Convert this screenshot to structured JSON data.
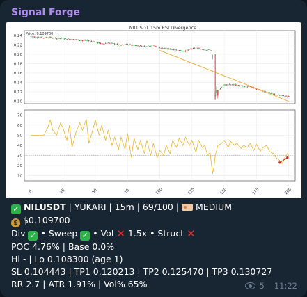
{
  "message": {
    "sender": "Signal Forge",
    "views": "5",
    "time": "11:22",
    "lines": {
      "l1": {
        "symbol": "NILUSDT",
        "rest": " | YUKARI | 15m | 69/100 | ",
        "grade": "MEDIUM"
      },
      "l2": {
        "price": "$0.109700"
      },
      "l3": {
        "div": "Div",
        "sweep": " • Sweep",
        "vol": " • Vol",
        "vol_mult": " 1.5x • Struct"
      },
      "l4": "POC 4.76% | Base 0.0%",
      "l5": "Hi - | Lo 0.108300 (age 1)",
      "l6": "SL 0.104443 | TP1 0.120213 | TP2 0.125470 | TP3 0.130727",
      "l7": "RR 2.7 | ATR 1.91% | Vol% 65%"
    }
  },
  "chart_data": {
    "type": "line",
    "title": "NILUSDT 15m RSI Divergence",
    "price_label": "Price: 0.109700",
    "x_ticks": [
      "0",
      "25",
      "50",
      "75",
      "100",
      "125",
      "150",
      "175",
      "200"
    ],
    "price_y_ticks": [
      "0.24",
      "0.22",
      "0.20",
      "0.18",
      "0.16",
      "0.14",
      "0.12",
      "0.10"
    ],
    "rsi_y_ticks": [
      "70",
      "60",
      "50",
      "40",
      "30",
      "20",
      "10"
    ],
    "price_ylim": [
      0.095,
      0.25
    ],
    "rsi_ylim": [
      5,
      75
    ],
    "xlim": [
      -5,
      205
    ],
    "price_series": {
      "x": [
        0,
        5,
        10,
        15,
        20,
        25,
        30,
        35,
        40,
        45,
        50,
        55,
        60,
        65,
        70,
        75,
        80,
        85,
        90,
        95,
        100,
        105,
        110,
        115,
        120,
        125,
        130,
        135,
        140,
        141,
        142,
        143,
        144,
        145,
        146,
        148,
        150,
        155,
        160,
        165,
        170,
        175,
        180,
        185,
        190,
        195,
        200
      ],
      "y": [
        0.238,
        0.236,
        0.235,
        0.236,
        0.233,
        0.234,
        0.232,
        0.231,
        0.229,
        0.229,
        0.226,
        0.222,
        0.224,
        0.222,
        0.219,
        0.221,
        0.219,
        0.218,
        0.217,
        0.219,
        0.214,
        0.212,
        0.21,
        0.208,
        0.206,
        0.212,
        0.212,
        0.21,
        0.208,
        0.195,
        0.17,
        0.11,
        0.12,
        0.118,
        0.124,
        0.13,
        0.135,
        0.136,
        0.134,
        0.132,
        0.131,
        0.126,
        0.122,
        0.118,
        0.114,
        0.112,
        0.11
      ]
    },
    "trend_line": {
      "x": [
        100,
        200
      ],
      "y": [
        0.208,
        0.1
      ]
    },
    "rsi_series": {
      "x": [
        0,
        5,
        10,
        13,
        15,
        17,
        20,
        23,
        25,
        28,
        30,
        32,
        35,
        38,
        40,
        43,
        45,
        48,
        50,
        53,
        55,
        58,
        60,
        63,
        65,
        68,
        70,
        73,
        75,
        78,
        80,
        83,
        85,
        88,
        90,
        93,
        95,
        98,
        100,
        103,
        105,
        108,
        110,
        113,
        115,
        118,
        120,
        123,
        125,
        128,
        130,
        133,
        135,
        137,
        139,
        140,
        141,
        142,
        143,
        145,
        148,
        150,
        153,
        155,
        158,
        160,
        163,
        165,
        168,
        170,
        173,
        175,
        178,
        180,
        183,
        185,
        188,
        190,
        193,
        195,
        197,
        199,
        200
      ],
      "y": [
        50,
        50,
        50,
        57,
        65,
        55,
        50,
        62,
        57,
        45,
        60,
        38,
        53,
        62,
        55,
        66,
        42,
        55,
        65,
        50,
        60,
        45,
        55,
        40,
        48,
        36,
        48,
        36,
        52,
        28,
        47,
        36,
        45,
        32,
        45,
        30,
        42,
        28,
        35,
        30,
        40,
        32,
        45,
        38,
        47,
        40,
        48,
        40,
        45,
        33,
        45,
        38,
        40,
        30,
        33,
        22,
        12,
        18,
        30,
        40,
        42,
        45,
        38,
        44,
        40,
        42,
        37,
        40,
        38,
        42,
        35,
        41,
        34,
        38,
        40,
        34,
        32,
        28,
        25,
        22,
        28,
        32,
        30
      ]
    },
    "rsi_reference": 30,
    "divergence_line": {
      "x": [
        193,
        199
      ],
      "y": [
        23,
        28
      ]
    },
    "colors": {
      "candle_up": "#2e9e4a",
      "candle_down": "#d23c3c",
      "trend": "#f0a830",
      "rsi": "#f0b429",
      "divergence": "#e02020"
    }
  }
}
